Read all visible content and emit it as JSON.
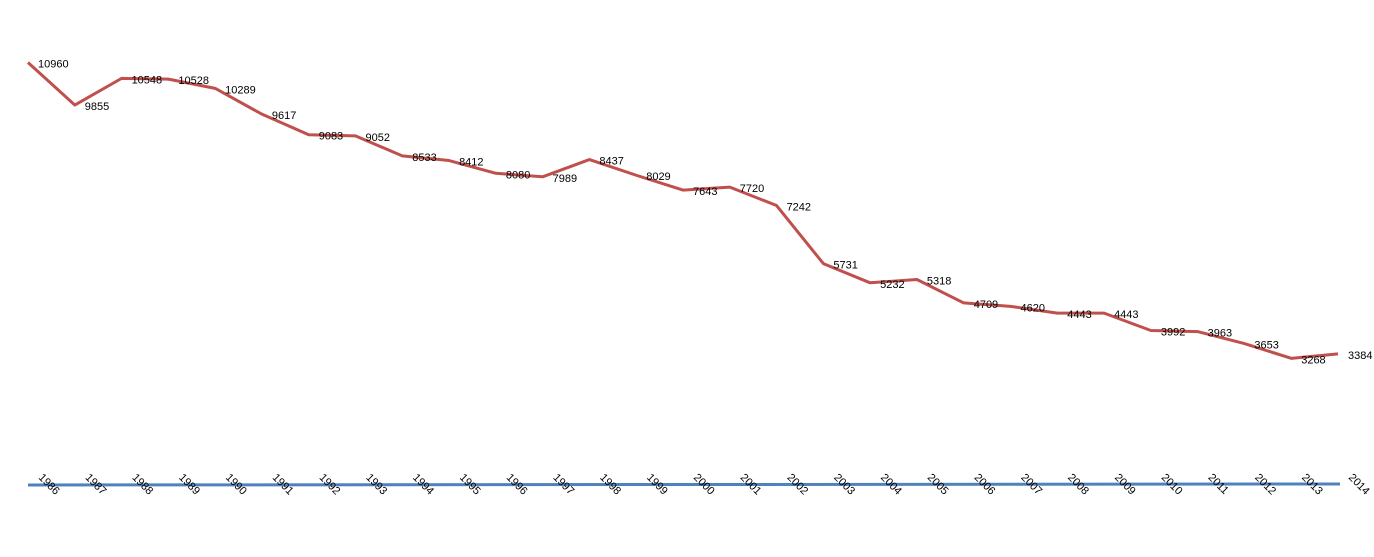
{
  "chart_data": {
    "type": "line",
    "categories": [
      "1986",
      "1987",
      "1988",
      "1989",
      "1990",
      "1991",
      "1992",
      "1993",
      "1994",
      "1995",
      "1996",
      "1997",
      "1998",
      "1999",
      "2000",
      "2001",
      "2002",
      "2003",
      "2004",
      "2005",
      "2006",
      "2007",
      "2008",
      "2009",
      "2010",
      "2011",
      "2012",
      "2013",
      "2014"
    ],
    "values": [
      10960,
      9855,
      10548,
      10528,
      10289,
      9617,
      9083,
      9052,
      8533,
      8412,
      8080,
      7989,
      8437,
      8029,
      7643,
      7720,
      7242,
      5731,
      5232,
      5318,
      4709,
      4620,
      4443,
      4443,
      3992,
      3963,
      3653,
      3268,
      3384
    ],
    "color": "#c0504d",
    "ylim": [
      0,
      11000
    ]
  }
}
